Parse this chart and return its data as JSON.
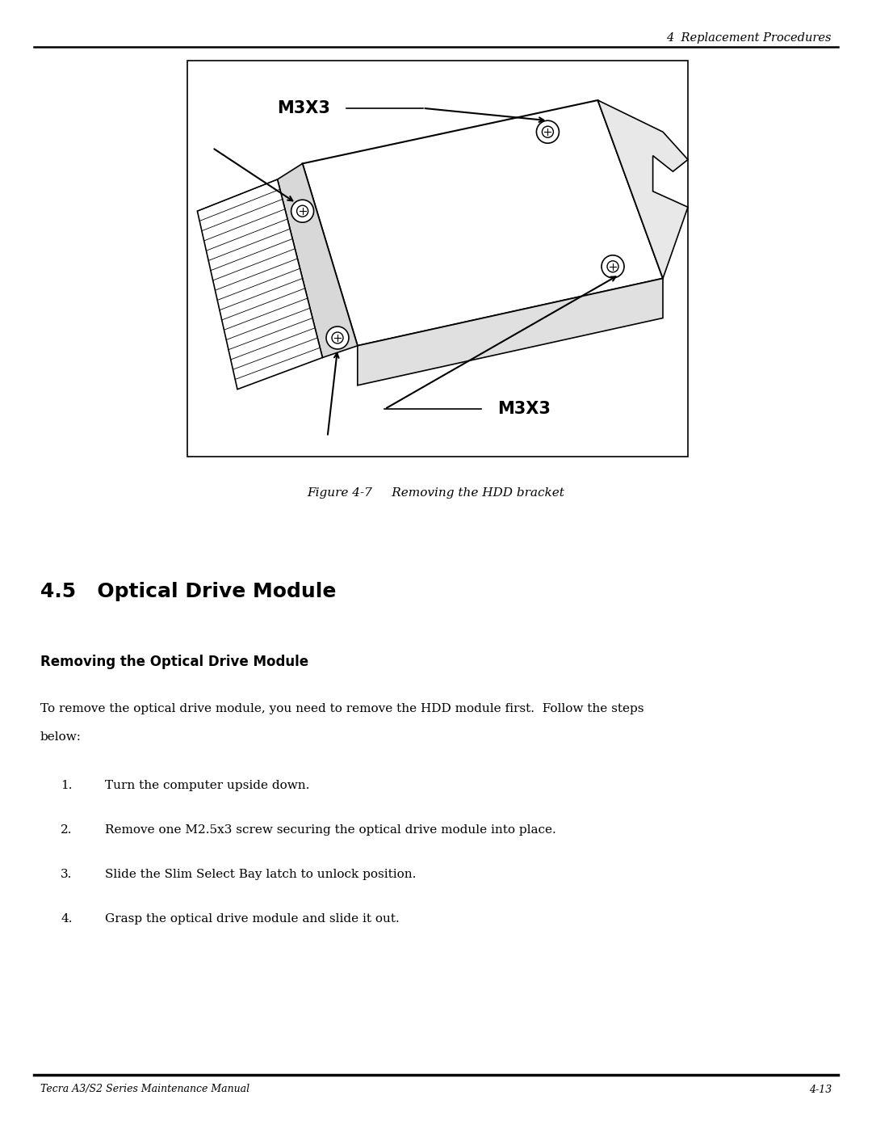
{
  "page_width": 10.8,
  "page_height": 13.97,
  "bg_color": "#ffffff",
  "header_text": "4  Replacement Procedures",
  "footer_left": "Tecra A3/S2 Series Maintenance Manual",
  "footer_right": "4-13",
  "figure_caption": "Figure 4-7     Removing the HDD bracket",
  "section_number": "4.5",
  "section_title": "Optical Drive Module",
  "subsection_title": "Removing the Optical Drive Module",
  "body_text_intro": "To remove the optical drive module, you need to remove the HDD module first.  Follow the steps\nbelow:",
  "steps": [
    "Turn the computer upside down.",
    "Remove one M2.5x3 screw securing the optical drive module into place.",
    "Slide the Slim Select Bay latch to unlock position.",
    "Grasp the optical drive module and slide it out."
  ],
  "font_color": "#000000"
}
